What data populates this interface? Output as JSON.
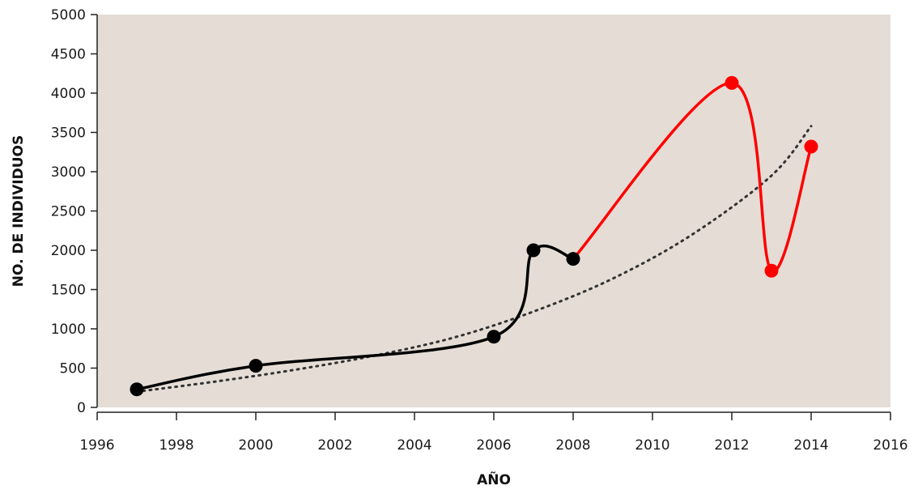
{
  "chart_data": {
    "type": "line",
    "title": "",
    "xlabel": "AÑO",
    "ylabel": "NO. DE INDIVIDUOS",
    "xlim": [
      1996,
      2016
    ],
    "ylim": [
      0,
      5000
    ],
    "x_ticks": [
      1996,
      1998,
      2000,
      2002,
      2004,
      2006,
      2008,
      2010,
      2012,
      2014,
      2016
    ],
    "y_ticks": [
      0,
      500,
      1000,
      1500,
      2000,
      2500,
      3000,
      3500,
      4000,
      4500,
      5000
    ],
    "grid": false,
    "plot_background": "#e5ddd5",
    "series": [
      {
        "color": "#000000",
        "style": "solid-smooth",
        "x": [
          1997,
          2000,
          2006,
          2007,
          2008
        ],
        "y": [
          230,
          530,
          900,
          2000,
          1890
        ]
      },
      {
        "color": "#ff0000",
        "style": "solid-smooth",
        "x": [
          2008,
          2012,
          2013,
          2014
        ],
        "y": [
          1890,
          4130,
          1740,
          3320
        ]
      },
      {
        "color": "#333333",
        "style": "dotted-trendline",
        "x": [
          1997,
          1999,
          2001,
          2003,
          2005,
          2007,
          2009,
          2011,
          2013,
          2014
        ],
        "y": [
          200,
          330,
          480,
          660,
          890,
          1220,
          1640,
          2200,
          2950,
          3580
        ]
      }
    ],
    "markers": [
      {
        "x": 1997,
        "y": 230,
        "color": "#000000"
      },
      {
        "x": 2000,
        "y": 530,
        "color": "#000000"
      },
      {
        "x": 2006,
        "y": 900,
        "color": "#000000"
      },
      {
        "x": 2007,
        "y": 2000,
        "color": "#000000"
      },
      {
        "x": 2008,
        "y": 1890,
        "color": "#000000"
      },
      {
        "x": 2012,
        "y": 4130,
        "color": "#ff0000"
      },
      {
        "x": 2013,
        "y": 1740,
        "color": "#ff0000"
      },
      {
        "x": 2014,
        "y": 3320,
        "color": "#ff0000"
      }
    ]
  }
}
